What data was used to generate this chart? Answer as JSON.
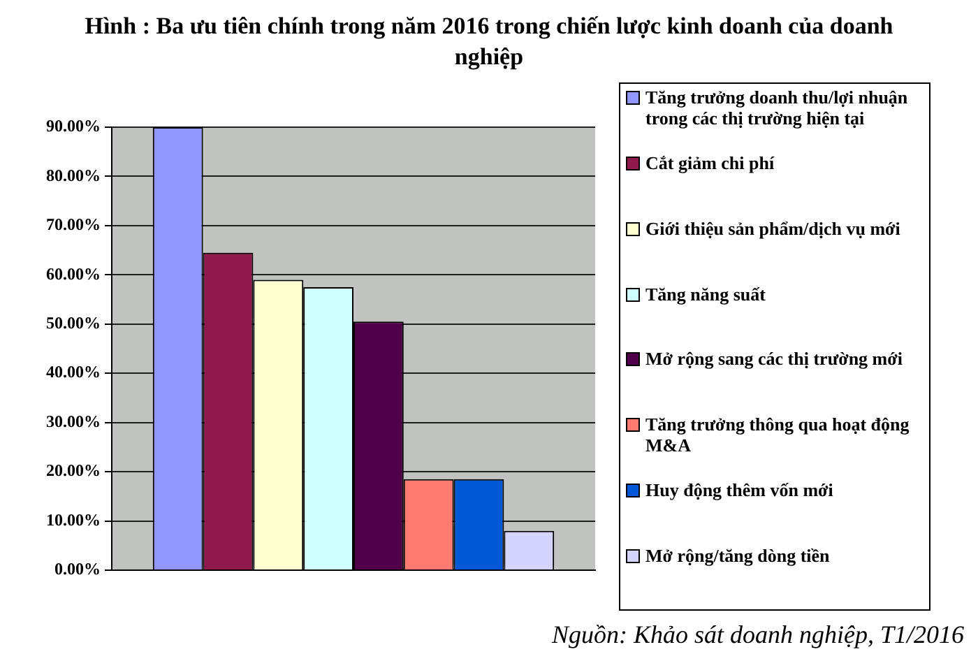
{
  "chart_data": {
    "type": "bar",
    "title": "Hình : Ba ưu tiên chính trong năm 2016 trong chiến lược kinh doanh của doanh nghiệp",
    "categories": [
      null
    ],
    "series": [
      {
        "name": "Tăng trưởng doanh thu/lợi nhuận trong các thị trường hiện tại",
        "color": "#9196ff",
        "values": [
          90
        ]
      },
      {
        "name": "Cắt giảm chi phí",
        "color": "#901a4b",
        "values": [
          64.5
        ]
      },
      {
        "name": "Giới thiệu sản phẩm/dịch vụ mới",
        "color": "#ffffd0",
        "values": [
          59
        ]
      },
      {
        "name": "Tăng năng suất",
        "color": "#d0ffff",
        "values": [
          57.5
        ]
      },
      {
        "name": "Mở rộng sang các thị trường mới",
        "color": "#500048",
        "values": [
          50.5
        ]
      },
      {
        "name": "Tăng trưởng thông qua hoạt động M&A",
        "color": "#ff7a70",
        "values": [
          18.5
        ]
      },
      {
        "name": "Huy động thêm vốn mới",
        "color": "#0058d6",
        "values": [
          18.5
        ]
      },
      {
        "name": "Mở rộng/tăng dòng tiền",
        "color": "#d4d4ff",
        "values": [
          8
        ]
      }
    ],
    "ylim": [
      0,
      90
    ],
    "yticks": [
      {
        "value": 0,
        "label": "0.00%"
      },
      {
        "value": 10,
        "label": "10.00%"
      },
      {
        "value": 20,
        "label": "20.00%"
      },
      {
        "value": 30,
        "label": "30.00%"
      },
      {
        "value": 40,
        "label": "40.00%"
      },
      {
        "value": 50,
        "label": "50.00%"
      },
      {
        "value": 60,
        "label": "60.00%"
      },
      {
        "value": 70,
        "label": "70.00%"
      },
      {
        "value": 80,
        "label": "80.00%"
      },
      {
        "value": 90,
        "label": "90.00%"
      }
    ],
    "grid": "y",
    "legend": "right",
    "annotations": [
      "Nguồn: Khảo sát doanh nghiệp, T1/2016"
    ]
  }
}
